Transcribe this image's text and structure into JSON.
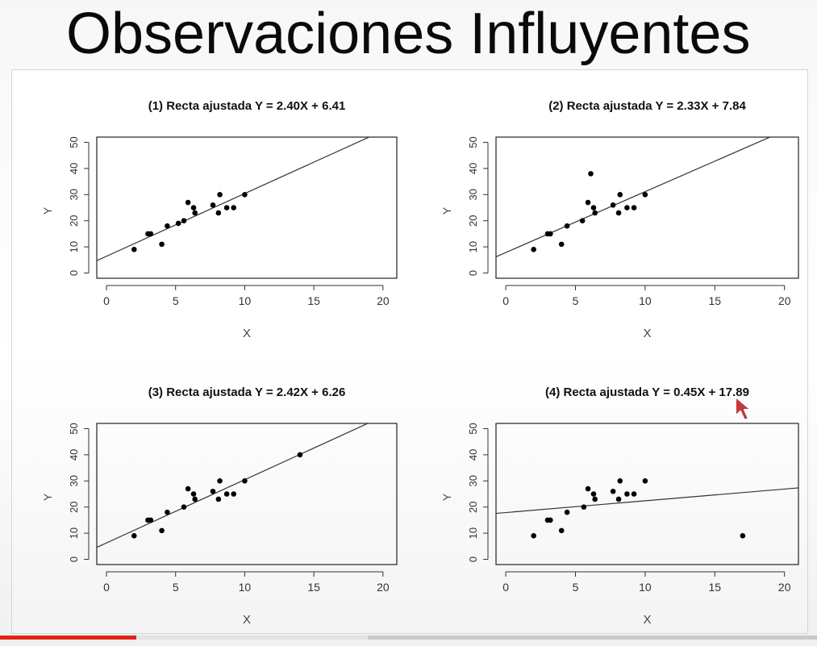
{
  "slide": {
    "title": "Observaciones Influyentes"
  },
  "video": {
    "progress_played": 0.167,
    "progress_buffered": 0.45
  },
  "chart_data": [
    {
      "type": "scatter",
      "title": "(1) Recta ajustada Y = 2.40X + 6.41",
      "xlabel": "X",
      "ylabel": "Y",
      "xlim": [
        -0.7,
        21
      ],
      "ylim": [
        -2,
        52
      ],
      "xticks": [
        0,
        5,
        10,
        15,
        20
      ],
      "yticks": [
        0,
        10,
        20,
        30,
        40,
        50
      ],
      "points": [
        [
          2,
          9
        ],
        [
          3,
          15
        ],
        [
          3.2,
          15
        ],
        [
          4,
          11
        ],
        [
          4.4,
          18
        ],
        [
          5.2,
          19
        ],
        [
          5.6,
          20
        ],
        [
          5.9,
          27
        ],
        [
          6.3,
          25
        ],
        [
          6.4,
          23
        ],
        [
          7.7,
          26
        ],
        [
          8.1,
          23
        ],
        [
          8.2,
          30
        ],
        [
          8.7,
          25
        ],
        [
          9.2,
          25
        ],
        [
          10,
          30
        ]
      ],
      "fit": {
        "slope": 2.4,
        "intercept": 6.41
      }
    },
    {
      "type": "scatter",
      "title": "(2) Recta ajustada Y = 2.33X + 7.84",
      "xlabel": "X",
      "ylabel": "Y",
      "xlim": [
        -0.7,
        21
      ],
      "ylim": [
        -2,
        52
      ],
      "xticks": [
        0,
        5,
        10,
        15,
        20
      ],
      "yticks": [
        0,
        10,
        20,
        30,
        40,
        50
      ],
      "points": [
        [
          2,
          9
        ],
        [
          3,
          15
        ],
        [
          3.2,
          15
        ],
        [
          4,
          11
        ],
        [
          4.4,
          18
        ],
        [
          5.5,
          20
        ],
        [
          5.9,
          27
        ],
        [
          6.1,
          38
        ],
        [
          6.3,
          25
        ],
        [
          6.4,
          23
        ],
        [
          7.7,
          26
        ],
        [
          8.1,
          23
        ],
        [
          8.2,
          30
        ],
        [
          8.7,
          25
        ],
        [
          9.2,
          25
        ],
        [
          10,
          30
        ]
      ],
      "fit": {
        "slope": 2.33,
        "intercept": 7.84
      }
    },
    {
      "type": "scatter",
      "title": "(3) Recta ajustada Y = 2.42X + 6.26",
      "xlabel": "X",
      "ylabel": "Y",
      "xlim": [
        -0.7,
        21
      ],
      "ylim": [
        -2,
        52
      ],
      "xticks": [
        0,
        5,
        10,
        15,
        20
      ],
      "yticks": [
        0,
        10,
        20,
        30,
        40,
        50
      ],
      "points": [
        [
          2,
          9
        ],
        [
          3,
          15
        ],
        [
          3.2,
          15
        ],
        [
          4,
          11
        ],
        [
          4.4,
          18
        ],
        [
          5.6,
          20
        ],
        [
          5.9,
          27
        ],
        [
          6.3,
          25
        ],
        [
          6.4,
          23
        ],
        [
          7.7,
          26
        ],
        [
          8.1,
          23
        ],
        [
          8.2,
          30
        ],
        [
          8.7,
          25
        ],
        [
          9.2,
          25
        ],
        [
          10,
          30
        ],
        [
          14,
          40
        ]
      ],
      "fit": {
        "slope": 2.42,
        "intercept": 6.26
      }
    },
    {
      "type": "scatter",
      "title": "(4) Recta ajustada Y = 0.45X + 17.89",
      "xlabel": "X",
      "ylabel": "Y",
      "xlim": [
        -0.7,
        21
      ],
      "ylim": [
        -2,
        52
      ],
      "xticks": [
        0,
        5,
        10,
        15,
        20
      ],
      "yticks": [
        0,
        10,
        20,
        30,
        40,
        50
      ],
      "points": [
        [
          2,
          9
        ],
        [
          3,
          15
        ],
        [
          3.2,
          15
        ],
        [
          4,
          11
        ],
        [
          4.4,
          18
        ],
        [
          5.6,
          20
        ],
        [
          5.9,
          27
        ],
        [
          6.3,
          25
        ],
        [
          6.4,
          23
        ],
        [
          7.7,
          26
        ],
        [
          8.1,
          23
        ],
        [
          8.2,
          30
        ],
        [
          8.7,
          25
        ],
        [
          9.2,
          25
        ],
        [
          10,
          30
        ],
        [
          17,
          9
        ]
      ],
      "fit": {
        "slope": 0.45,
        "intercept": 17.89
      }
    }
  ]
}
